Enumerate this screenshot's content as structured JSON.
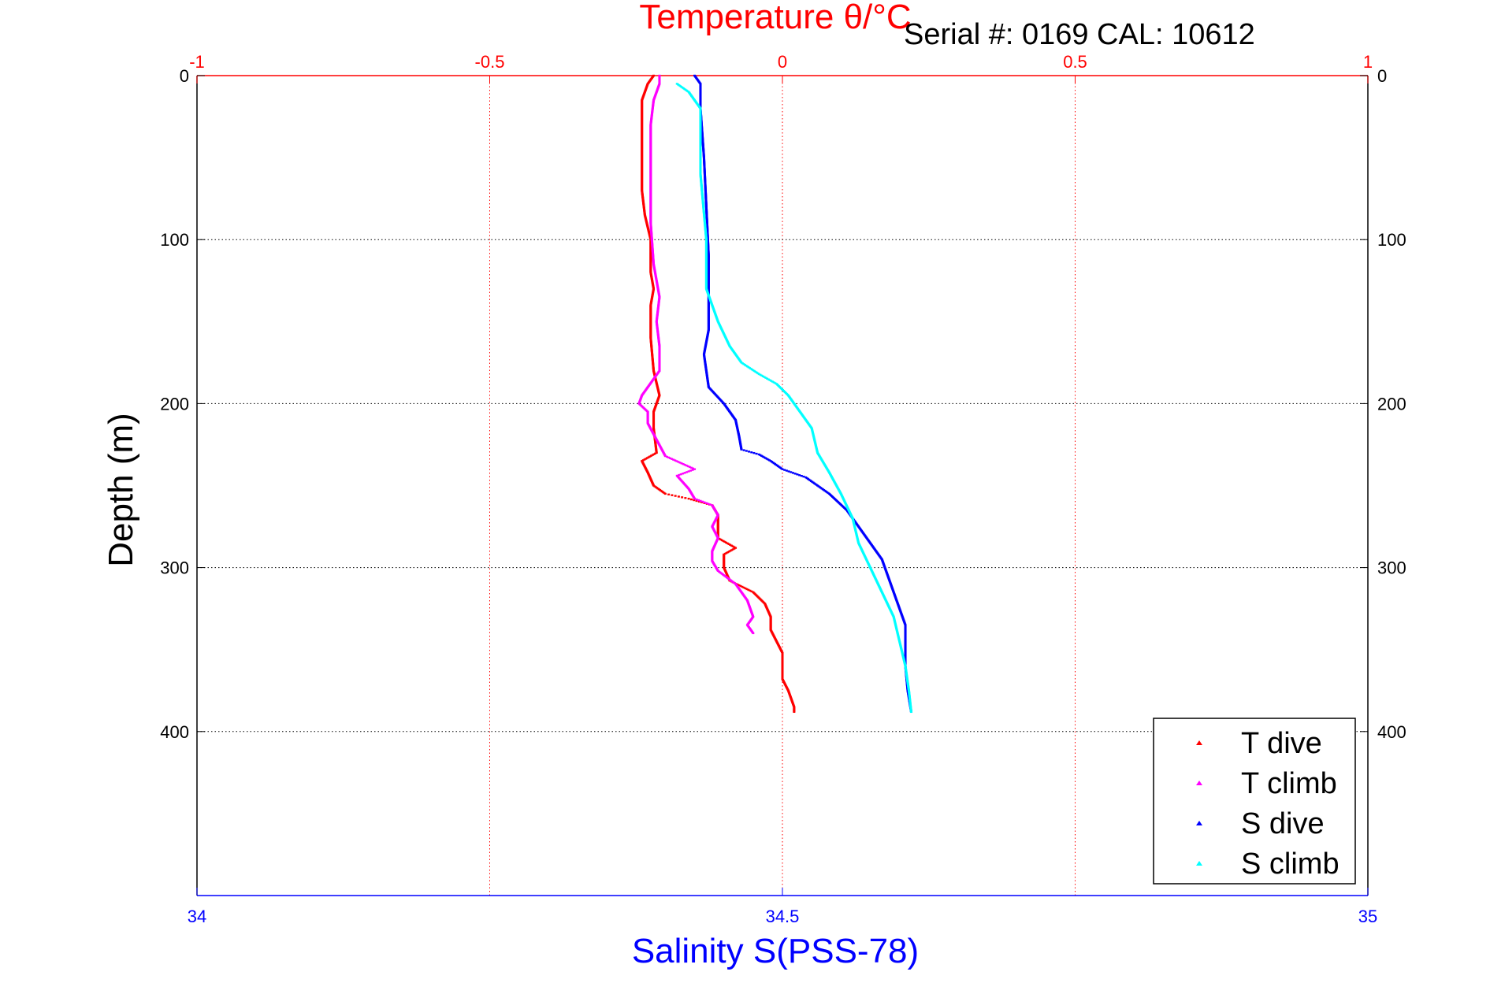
{
  "chart_data": {
    "type": "scatter",
    "title": "Temperature θ/°C",
    "annotation": "Serial #: 0169 CAL: 10612",
    "xlabel": "Salinity S(PSS-78)",
    "x2label": "Temperature θ/°C",
    "ylabel": "Depth (m)",
    "xlim": [
      34,
      35
    ],
    "x2lim": [
      -1,
      1
    ],
    "ylim": [
      0,
      500
    ],
    "y_reversed": true,
    "x_ticks": [
      "34",
      "34.5",
      "35"
    ],
    "x2_ticks": [
      "-1",
      "-0.5",
      "0",
      "0.5",
      "1"
    ],
    "y_ticks": [
      "0",
      "100",
      "200",
      "300",
      "400"
    ],
    "y_ticks_right": [
      "0",
      "100",
      "200",
      "300",
      "400"
    ],
    "grid": true,
    "legend_position": "bottom-right",
    "colors": {
      "axis_top": "#ff0000",
      "axis_bottom": "#0000ff",
      "t_dive": "#ff0000",
      "t_climb": "#ff00ff",
      "s_dive": "#0000ff",
      "s_climb": "#00ffff"
    },
    "series": [
      {
        "name": "T dive",
        "axis": "temperature",
        "color": "#ff0000",
        "points": [
          [
            -0.22,
            0
          ],
          [
            -0.23,
            5
          ],
          [
            -0.24,
            15
          ],
          [
            -0.24,
            30
          ],
          [
            -0.24,
            50
          ],
          [
            -0.24,
            70
          ],
          [
            -0.235,
            85
          ],
          [
            -0.225,
            100
          ],
          [
            -0.225,
            120
          ],
          [
            -0.22,
            130
          ],
          [
            -0.225,
            140
          ],
          [
            -0.225,
            160
          ],
          [
            -0.22,
            180
          ],
          [
            -0.21,
            195
          ],
          [
            -0.22,
            205
          ],
          [
            -0.22,
            215
          ],
          [
            -0.215,
            230
          ],
          [
            -0.24,
            235
          ],
          [
            -0.23,
            242
          ],
          [
            -0.22,
            250
          ],
          [
            -0.2,
            255
          ],
          [
            -0.16,
            258
          ],
          [
            -0.12,
            262
          ],
          [
            -0.11,
            268
          ],
          [
            -0.11,
            275
          ],
          [
            -0.11,
            282
          ],
          [
            -0.08,
            288
          ],
          [
            -0.1,
            292
          ],
          [
            -0.1,
            300
          ],
          [
            -0.09,
            308
          ],
          [
            -0.05,
            315
          ],
          [
            -0.03,
            322
          ],
          [
            -0.02,
            330
          ],
          [
            -0.02,
            338
          ],
          [
            -0.01,
            345
          ],
          [
            0.0,
            352
          ],
          [
            0.0,
            360
          ],
          [
            0.0,
            368
          ],
          [
            0.01,
            375
          ],
          [
            0.02,
            385
          ],
          [
            0.02,
            388
          ]
        ]
      },
      {
        "name": "T climb",
        "axis": "temperature",
        "color": "#ff00ff",
        "points": [
          [
            -0.21,
            0
          ],
          [
            -0.21,
            5
          ],
          [
            -0.22,
            15
          ],
          [
            -0.225,
            30
          ],
          [
            -0.225,
            60
          ],
          [
            -0.225,
            90
          ],
          [
            -0.22,
            115
          ],
          [
            -0.21,
            135
          ],
          [
            -0.215,
            150
          ],
          [
            -0.21,
            165
          ],
          [
            -0.21,
            180
          ],
          [
            -0.24,
            195
          ],
          [
            -0.245,
            200
          ],
          [
            -0.23,
            205
          ],
          [
            -0.23,
            212
          ],
          [
            -0.2,
            232
          ],
          [
            -0.15,
            240
          ],
          [
            -0.18,
            244
          ],
          [
            -0.16,
            252
          ],
          [
            -0.15,
            258
          ],
          [
            -0.12,
            262
          ],
          [
            -0.11,
            268
          ],
          [
            -0.12,
            275
          ],
          [
            -0.11,
            282
          ],
          [
            -0.12,
            290
          ],
          [
            -0.12,
            296
          ],
          [
            -0.11,
            302
          ],
          [
            -0.08,
            310
          ],
          [
            -0.06,
            320
          ],
          [
            -0.05,
            330
          ],
          [
            -0.06,
            335
          ],
          [
            -0.05,
            340
          ]
        ]
      },
      {
        "name": "S dive",
        "axis": "salinity",
        "color": "#0000ff",
        "points": [
          [
            34.425,
            0
          ],
          [
            34.43,
            5
          ],
          [
            34.43,
            20
          ],
          [
            34.433,
            50
          ],
          [
            34.435,
            80
          ],
          [
            34.437,
            110
          ],
          [
            34.437,
            140
          ],
          [
            34.437,
            155
          ],
          [
            34.433,
            170
          ],
          [
            34.437,
            190
          ],
          [
            34.45,
            200
          ],
          [
            34.46,
            210
          ],
          [
            34.463,
            220
          ],
          [
            34.465,
            228
          ],
          [
            34.48,
            231
          ],
          [
            34.49,
            235
          ],
          [
            34.5,
            240
          ],
          [
            34.52,
            245
          ],
          [
            34.54,
            255
          ],
          [
            34.555,
            265
          ],
          [
            34.565,
            275
          ],
          [
            34.575,
            285
          ],
          [
            34.585,
            295
          ],
          [
            34.59,
            305
          ],
          [
            34.595,
            315
          ],
          [
            34.6,
            325
          ],
          [
            34.605,
            335
          ],
          [
            34.605,
            345
          ],
          [
            34.605,
            360
          ],
          [
            34.607,
            375
          ],
          [
            34.61,
            388
          ]
        ]
      },
      {
        "name": "S climb",
        "axis": "salinity",
        "color": "#00ffff",
        "points": [
          [
            34.41,
            5
          ],
          [
            34.42,
            10
          ],
          [
            34.43,
            20
          ],
          [
            34.43,
            60
          ],
          [
            34.435,
            100
          ],
          [
            34.435,
            130
          ],
          [
            34.44,
            140
          ],
          [
            34.445,
            150
          ],
          [
            34.455,
            165
          ],
          [
            34.465,
            175
          ],
          [
            34.48,
            182
          ],
          [
            34.495,
            188
          ],
          [
            34.505,
            195
          ],
          [
            34.515,
            205
          ],
          [
            34.525,
            215
          ],
          [
            34.53,
            230
          ],
          [
            34.54,
            242
          ],
          [
            34.55,
            255
          ],
          [
            34.56,
            270
          ],
          [
            34.565,
            285
          ],
          [
            34.575,
            300
          ],
          [
            34.585,
            315
          ],
          [
            34.595,
            330
          ],
          [
            34.6,
            345
          ],
          [
            34.605,
            360
          ],
          [
            34.608,
            375
          ],
          [
            34.61,
            388
          ]
        ]
      }
    ]
  }
}
